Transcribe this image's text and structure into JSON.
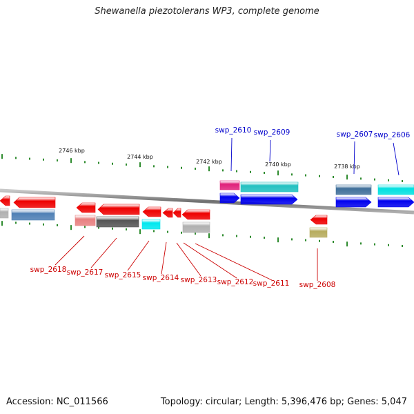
{
  "title": "Shewanella piezotolerans WP3, complete genome",
  "footer": {
    "accession": "Accession: NC_011566",
    "topology": "Topology: circular; Length: 5,396,476 bp; Genes: 5,047"
  },
  "colors": {
    "forward_label": "#0000cc",
    "reverse_label": "#cc0000",
    "tick": "#2e8b2e",
    "backbone": "#888888"
  },
  "scale_labels": [
    "2746 kbp",
    "2744 kbp",
    "2742 kbp",
    "2740 kbp",
    "2738 kbp"
  ],
  "forward_genes": [
    {
      "name": "swp_2610"
    },
    {
      "name": "swp_2609"
    },
    {
      "name": "swp_2607"
    },
    {
      "name": "swp_2606"
    }
  ],
  "reverse_genes": [
    {
      "name": "swp_2618"
    },
    {
      "name": "swp_2617"
    },
    {
      "name": "swp_2615"
    },
    {
      "name": "swp_2614"
    },
    {
      "name": "swp_2613"
    },
    {
      "name": "swp_2612"
    },
    {
      "name": "swp_2611"
    },
    {
      "name": "swp_2608"
    }
  ]
}
